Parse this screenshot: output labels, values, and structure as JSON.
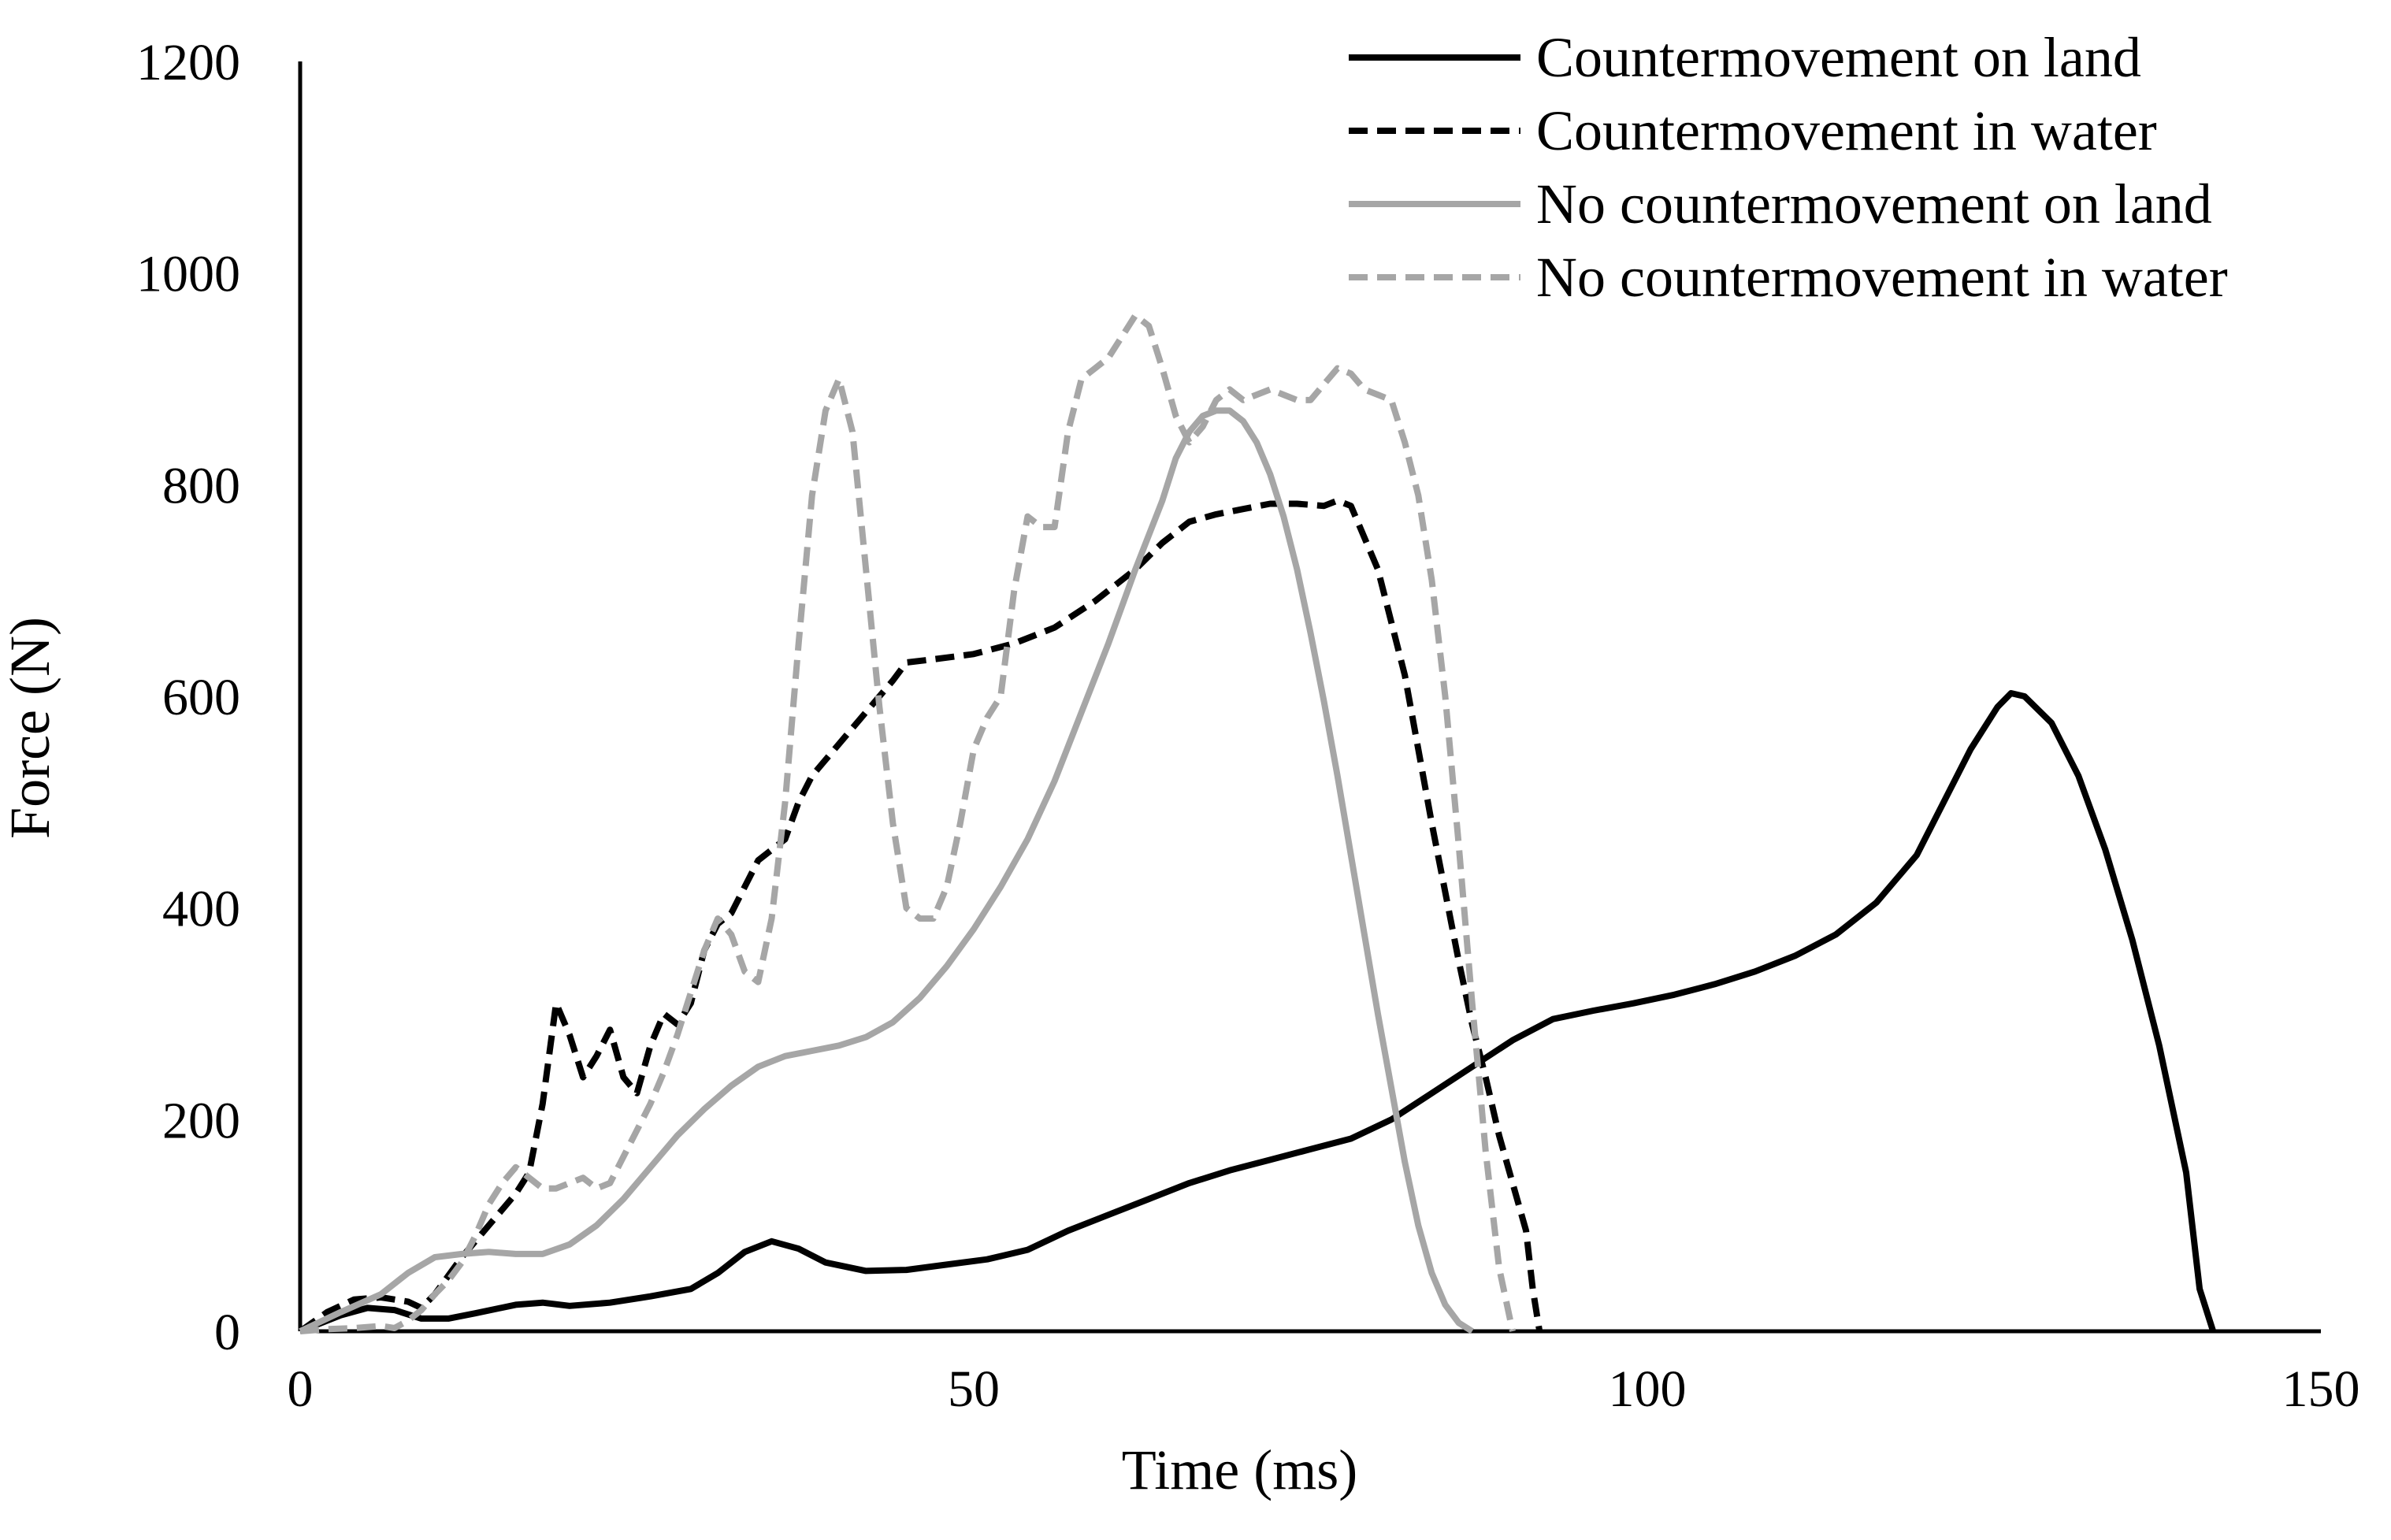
{
  "chart_data": {
    "type": "line",
    "title": "",
    "xlabel": "Time (ms)",
    "ylabel": "Force (N)",
    "xlim": [
      0,
      150
    ],
    "ylim": [
      0,
      1200
    ],
    "x_ticks": [
      0,
      50,
      100,
      150
    ],
    "y_ticks": [
      0,
      200,
      400,
      600,
      800,
      1000,
      1200
    ],
    "x_tick_labels": [
      "0",
      "50",
      "100",
      "150"
    ],
    "y_tick_labels": [
      "0",
      "200",
      "400",
      "600",
      "800",
      "1000",
      "1200"
    ],
    "grid": false,
    "legend_position": "top-right",
    "series": [
      {
        "name": "Countermovement on land",
        "color": "#000000",
        "dash": "solid",
        "points": [
          [
            0,
            0
          ],
          [
            3,
            15
          ],
          [
            5,
            22
          ],
          [
            7,
            20
          ],
          [
            9,
            12
          ],
          [
            11,
            12
          ],
          [
            13,
            17
          ],
          [
            16,
            25
          ],
          [
            18,
            27
          ],
          [
            20,
            24
          ],
          [
            23,
            27
          ],
          [
            26,
            33
          ],
          [
            29,
            40
          ],
          [
            31,
            55
          ],
          [
            33,
            75
          ],
          [
            35,
            85
          ],
          [
            37,
            78
          ],
          [
            39,
            65
          ],
          [
            42,
            57
          ],
          [
            45,
            58
          ],
          [
            48,
            63
          ],
          [
            51,
            68
          ],
          [
            54,
            77
          ],
          [
            57,
            95
          ],
          [
            60,
            110
          ],
          [
            63,
            125
          ],
          [
            66,
            140
          ],
          [
            69,
            152
          ],
          [
            72,
            162
          ],
          [
            75,
            172
          ],
          [
            78,
            182
          ],
          [
            81,
            200
          ],
          [
            84,
            225
          ],
          [
            87,
            250
          ],
          [
            90,
            275
          ],
          [
            93,
            295
          ],
          [
            96,
            303
          ],
          [
            99,
            310
          ],
          [
            102,
            318
          ],
          [
            105,
            328
          ],
          [
            108,
            340
          ],
          [
            111,
            355
          ],
          [
            114,
            375
          ],
          [
            117,
            405
          ],
          [
            120,
            450
          ],
          [
            122,
            500
          ],
          [
            124,
            550
          ],
          [
            126,
            590
          ],
          [
            127,
            603
          ],
          [
            128,
            600
          ],
          [
            130,
            575
          ],
          [
            132,
            525
          ],
          [
            134,
            455
          ],
          [
            136,
            370
          ],
          [
            138,
            270
          ],
          [
            140,
            150
          ],
          [
            141,
            40
          ],
          [
            142,
            0
          ]
        ]
      },
      {
        "name": "Countermovement in water",
        "color": "#000000",
        "dash": "dashed",
        "points": [
          [
            0,
            0
          ],
          [
            2,
            18
          ],
          [
            4,
            30
          ],
          [
            6,
            32
          ],
          [
            8,
            28
          ],
          [
            9,
            22
          ],
          [
            10,
            35
          ],
          [
            12,
            70
          ],
          [
            14,
            100
          ],
          [
            16,
            130
          ],
          [
            17,
            150
          ],
          [
            18,
            215
          ],
          [
            19,
            310
          ],
          [
            20,
            280
          ],
          [
            21,
            240
          ],
          [
            22,
            260
          ],
          [
            23,
            285
          ],
          [
            24,
            240
          ],
          [
            25,
            225
          ],
          [
            26,
            270
          ],
          [
            27,
            300
          ],
          [
            28,
            290
          ],
          [
            29,
            310
          ],
          [
            30,
            360
          ],
          [
            31,
            385
          ],
          [
            32,
            395
          ],
          [
            33,
            420
          ],
          [
            34,
            445
          ],
          [
            35,
            455
          ],
          [
            36,
            465
          ],
          [
            37,
            500
          ],
          [
            38,
            525
          ],
          [
            39,
            540
          ],
          [
            40,
            555
          ],
          [
            42,
            585
          ],
          [
            44,
            615
          ],
          [
            45,
            632
          ],
          [
            47,
            635
          ],
          [
            50,
            640
          ],
          [
            53,
            650
          ],
          [
            56,
            665
          ],
          [
            59,
            690
          ],
          [
            62,
            720
          ],
          [
            64,
            745
          ],
          [
            66,
            765
          ],
          [
            68,
            772
          ],
          [
            70,
            777
          ],
          [
            72,
            782
          ],
          [
            74,
            782
          ],
          [
            76,
            780
          ],
          [
            77,
            785
          ],
          [
            78,
            780
          ],
          [
            80,
            720
          ],
          [
            82,
            620
          ],
          [
            84,
            480
          ],
          [
            86,
            350
          ],
          [
            87,
            290
          ],
          [
            88,
            240
          ],
          [
            89,
            185
          ],
          [
            90,
            140
          ],
          [
            91,
            95
          ],
          [
            91.5,
            40
          ],
          [
            92,
            0
          ]
        ]
      },
      {
        "name": "No countermovement on land",
        "color": "#a6a6a6",
        "dash": "solid",
        "points": [
          [
            0,
            0
          ],
          [
            3,
            18
          ],
          [
            6,
            35
          ],
          [
            8,
            55
          ],
          [
            10,
            70
          ],
          [
            12,
            73
          ],
          [
            14,
            75
          ],
          [
            16,
            73
          ],
          [
            18,
            73
          ],
          [
            20,
            82
          ],
          [
            22,
            100
          ],
          [
            24,
            125
          ],
          [
            26,
            155
          ],
          [
            28,
            185
          ],
          [
            30,
            210
          ],
          [
            32,
            232
          ],
          [
            34,
            250
          ],
          [
            36,
            260
          ],
          [
            38,
            265
          ],
          [
            40,
            270
          ],
          [
            42,
            278
          ],
          [
            44,
            292
          ],
          [
            46,
            315
          ],
          [
            48,
            345
          ],
          [
            50,
            380
          ],
          [
            52,
            420
          ],
          [
            54,
            465
          ],
          [
            56,
            520
          ],
          [
            58,
            585
          ],
          [
            60,
            650
          ],
          [
            62,
            720
          ],
          [
            64,
            785
          ],
          [
            65,
            825
          ],
          [
            66,
            850
          ],
          [
            67,
            865
          ],
          [
            68,
            870
          ],
          [
            69,
            870
          ],
          [
            70,
            860
          ],
          [
            71,
            840
          ],
          [
            72,
            810
          ],
          [
            73,
            770
          ],
          [
            74,
            720
          ],
          [
            75,
            660
          ],
          [
            76,
            595
          ],
          [
            77,
            525
          ],
          [
            78,
            450
          ],
          [
            79,
            375
          ],
          [
            80,
            300
          ],
          [
            81,
            230
          ],
          [
            82,
            160
          ],
          [
            83,
            100
          ],
          [
            84,
            55
          ],
          [
            85,
            25
          ],
          [
            86,
            8
          ],
          [
            87,
            0
          ]
        ]
      },
      {
        "name": "No countermovement in water",
        "color": "#a6a6a6",
        "dash": "dashed",
        "points": [
          [
            0,
            0
          ],
          [
            2,
            2
          ],
          [
            4,
            3
          ],
          [
            6,
            5
          ],
          [
            7,
            3
          ],
          [
            8,
            10
          ],
          [
            9,
            20
          ],
          [
            10,
            35
          ],
          [
            11,
            48
          ],
          [
            12,
            65
          ],
          [
            13,
            90
          ],
          [
            14,
            120
          ],
          [
            15,
            140
          ],
          [
            16,
            155
          ],
          [
            17,
            145
          ],
          [
            18,
            135
          ],
          [
            19,
            135
          ],
          [
            20,
            140
          ],
          [
            21,
            145
          ],
          [
            22,
            135
          ],
          [
            23,
            140
          ],
          [
            24,
            165
          ],
          [
            25,
            190
          ],
          [
            26,
            215
          ],
          [
            27,
            245
          ],
          [
            28,
            280
          ],
          [
            29,
            320
          ],
          [
            30,
            360
          ],
          [
            31,
            390
          ],
          [
            32,
            375
          ],
          [
            33,
            340
          ],
          [
            34,
            330
          ],
          [
            35,
            390
          ],
          [
            36,
            500
          ],
          [
            37,
            650
          ],
          [
            38,
            790
          ],
          [
            39,
            870
          ],
          [
            40,
            900
          ],
          [
            41,
            850
          ],
          [
            42,
            720
          ],
          [
            43,
            590
          ],
          [
            44,
            480
          ],
          [
            45,
            400
          ],
          [
            46,
            390
          ],
          [
            47,
            390
          ],
          [
            48,
            420
          ],
          [
            49,
            480
          ],
          [
            50,
            550
          ],
          [
            51,
            580
          ],
          [
            52,
            600
          ],
          [
            53,
            700
          ],
          [
            54,
            770
          ],
          [
            55,
            760
          ],
          [
            56,
            760
          ],
          [
            57,
            850
          ],
          [
            58,
            900
          ],
          [
            59,
            910
          ],
          [
            60,
            920
          ],
          [
            61,
            940
          ],
          [
            62,
            960
          ],
          [
            63,
            950
          ],
          [
            64,
            910
          ],
          [
            65,
            865
          ],
          [
            66,
            840
          ],
          [
            67,
            855
          ],
          [
            68,
            880
          ],
          [
            69,
            890
          ],
          [
            70,
            880
          ],
          [
            71,
            885
          ],
          [
            72,
            890
          ],
          [
            73,
            885
          ],
          [
            74,
            880
          ],
          [
            75,
            880
          ],
          [
            76,
            895
          ],
          [
            77,
            910
          ],
          [
            78,
            905
          ],
          [
            79,
            890
          ],
          [
            80,
            885
          ],
          [
            81,
            880
          ],
          [
            82,
            840
          ],
          [
            83,
            790
          ],
          [
            84,
            710
          ],
          [
            85,
            600
          ],
          [
            86,
            460
          ],
          [
            87,
            310
          ],
          [
            88,
            170
          ],
          [
            89,
            60
          ],
          [
            90,
            0
          ]
        ]
      }
    ]
  }
}
